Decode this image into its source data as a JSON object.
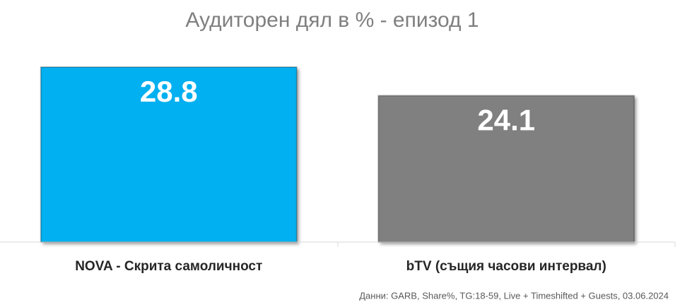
{
  "chart_data": {
    "type": "bar",
    "title": "Аудиторен дял в % - епизод 1",
    "categories": [
      "NOVA - Скрита самоличност",
      "bTV (същия часови интервал)"
    ],
    "values": [
      28.8,
      24.1
    ],
    "colors": [
      "#00b0f0",
      "#808080"
    ],
    "source": "Данни: GARB, Share%, TG:18-59, Live + Timeshifted + Guests, 03.06.2024"
  }
}
